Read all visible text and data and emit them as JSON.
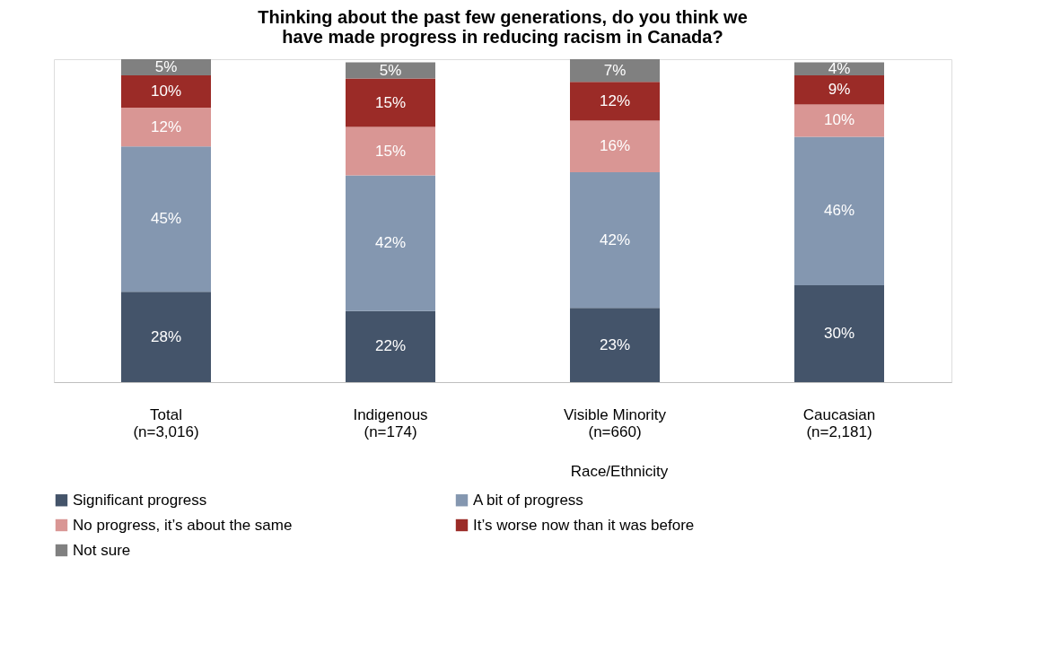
{
  "chart_data": {
    "type": "bar",
    "title": "Thinking about the past few generations, do you think we have made progress in reducing racism in Canada?",
    "categories": [
      "Total (n=3,016)",
      "Indigenous (n=174)",
      "Visible Minority (n=660)",
      "Caucasian (n=2,181)"
    ],
    "stacked": true,
    "legend": "bottom",
    "grid": false,
    "series": [
      {
        "name": "Significant progress",
        "color": "#44546a",
        "values": [
          28,
          22,
          23,
          30
        ],
        "value_labels": [
          "28%",
          "22%",
          "23%",
          "30%"
        ]
      },
      {
        "name": "A bit of progress",
        "color": "#8497b0",
        "values": [
          45,
          42,
          42,
          46
        ],
        "value_labels": [
          "45%",
          "42%",
          "42%",
          "46%"
        ]
      },
      {
        "name": "No progress, it’s about the same",
        "color": "#d99694",
        "values": [
          12,
          15,
          16,
          10
        ],
        "value_labels": [
          "12%",
          "15%",
          "16%",
          "10%"
        ]
      },
      {
        "name": "It’s worse now than it was before",
        "color": "#9b2b27",
        "values": [
          10,
          15,
          12,
          9
        ],
        "value_labels": [
          "10%",
          "15%",
          "12%",
          "9%"
        ]
      },
      {
        "name": "Not sure",
        "color": "#808080",
        "values": [
          5,
          5,
          7,
          4
        ],
        "value_labels": [
          "5%",
          "5%",
          "7%",
          "4%"
        ]
      }
    ],
    "annotations": [
      "Race/Ethnicity"
    ]
  }
}
